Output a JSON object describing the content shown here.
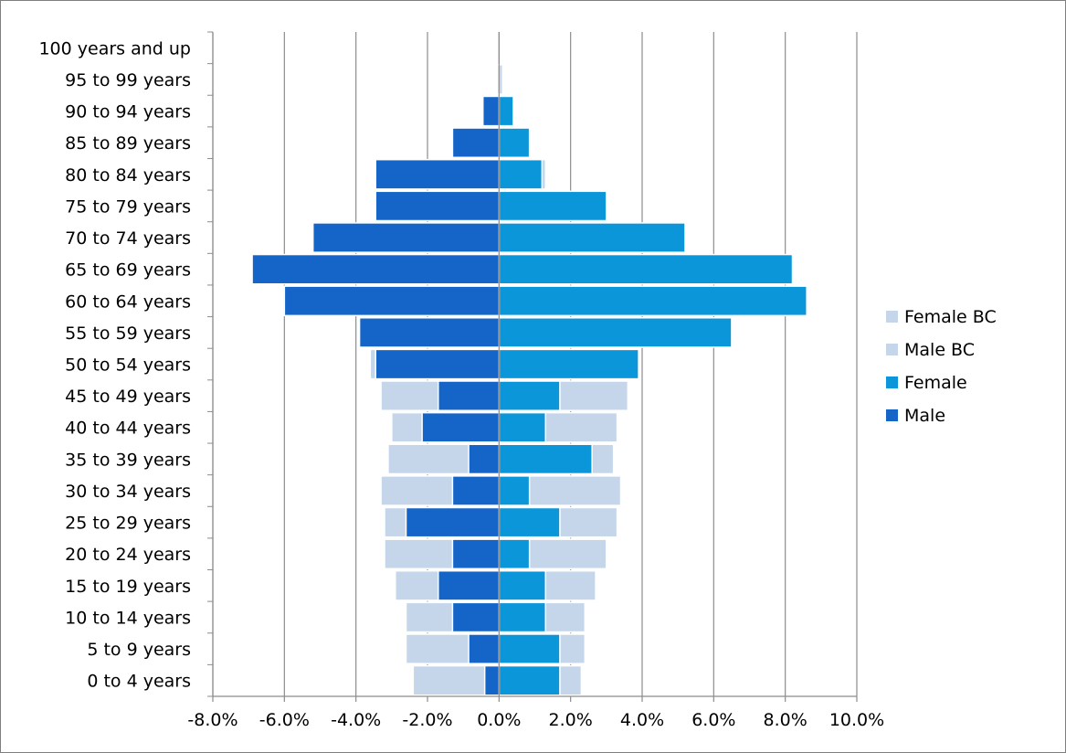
{
  "chart_data": {
    "type": "bar",
    "orientation": "horizontal",
    "title": "",
    "categories": [
      "0 to 4 years",
      "5 to 9 years",
      "10 to 14 years",
      "15 to 19 years",
      "20 to 24 years",
      "25 to 29 years",
      "30 to 34 years",
      "35 to 39 years",
      "40 to 44 years",
      "45 to 49 years",
      "50 to 54 years",
      "55 to 59 years",
      "60 to 64 years",
      "65 to 69 years",
      "70 to 74 years",
      "75 to 79 years",
      "80 to 84 years",
      "85 to 89 years",
      "90 to 94 years",
      "95 to 99 years",
      "100 years and up"
    ],
    "xlim": [
      -8.0,
      10.0
    ],
    "xticks": [
      "-8.0%",
      "-6.0%",
      "-4.0%",
      "-2.0%",
      "0.0%",
      "2.0%",
      "4.0%",
      "6.0%",
      "8.0%",
      "10.0%"
    ],
    "grid": true,
    "legend_position": "right",
    "series": [
      {
        "name": "Female BC",
        "color": "#c5d6ea",
        "values": [
          2.3,
          2.4,
          2.4,
          2.7,
          3.0,
          3.3,
          3.4,
          3.2,
          3.3,
          3.6,
          3.7,
          3.4,
          3.2,
          3.0,
          2.3,
          1.5,
          1.3,
          0.8,
          0.4,
          0.1,
          0.0
        ]
      },
      {
        "name": "Male BC",
        "color": "#c5d6ea",
        "values": [
          -2.4,
          -2.6,
          -2.6,
          -2.9,
          -3.2,
          -3.2,
          -3.3,
          -3.1,
          -3.0,
          -3.3,
          -3.6,
          -3.8,
          -3.4,
          -3.0,
          -2.1,
          -1.5,
          -1.0,
          -0.6,
          -0.2,
          -0.05,
          0.0
        ]
      },
      {
        "name": "Female",
        "color": "#0a96d8",
        "values": [
          1.7,
          1.7,
          1.3,
          1.3,
          0.85,
          1.7,
          0.85,
          2.6,
          1.3,
          1.7,
          3.9,
          6.5,
          8.6,
          8.2,
          5.2,
          3.0,
          1.2,
          0.85,
          0.4,
          0.0,
          0.0
        ]
      },
      {
        "name": "Male",
        "color": "#1565c8",
        "values": [
          -0.4,
          -0.85,
          -1.3,
          -1.7,
          -1.3,
          -2.6,
          -1.3,
          -0.85,
          -2.15,
          -1.7,
          -3.45,
          -3.9,
          -6.0,
          -6.9,
          -5.2,
          -3.45,
          -3.45,
          -1.3,
          -0.45,
          0.0,
          0.0
        ]
      }
    ]
  }
}
